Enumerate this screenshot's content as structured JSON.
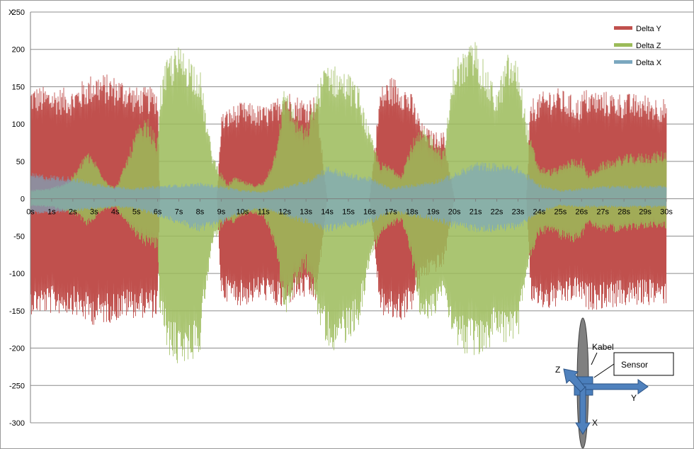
{
  "chart_data": {
    "type": "area",
    "title": "",
    "y_axis_title": "X",
    "xlabel": "",
    "ylabel": "",
    "ylim": [
      -300,
      250
    ],
    "xlim": [
      0,
      30
    ],
    "y_ticks": [
      -300,
      -250,
      -200,
      -150,
      -100,
      -50,
      0,
      50,
      100,
      150,
      200,
      250
    ],
    "y_tick_labels": [
      "-300",
      "-250",
      "-200",
      "-150",
      "-100",
      "-50",
      "0",
      "50",
      "100",
      "150",
      "200",
      "250"
    ],
    "x_tick_labels": [
      "0s",
      "1s",
      "2s",
      "3s",
      "4s",
      "5s",
      "6s",
      "7s",
      "8s",
      "9s",
      "10s",
      "11s",
      "12s",
      "13s",
      "14s",
      "15s",
      "16s",
      "17s",
      "18s",
      "19s",
      "20s",
      "21s",
      "22s",
      "23s",
      "24s",
      "25s",
      "26s",
      "27s",
      "28s",
      "29s",
      "30s"
    ],
    "grid": "horizontal",
    "legend_position": "top-right",
    "colors": {
      "Delta Y": "#c0504d",
      "Delta Z": "#9bbb59",
      "Delta X": "#7ba7bf"
    },
    "series": [
      {
        "name": "Delta Y",
        "envelope": {
          "t": [
            0,
            1,
            2,
            2.5,
            3,
            3.5,
            4,
            4.5,
            5,
            6,
            6.1,
            8.8,
            9,
            9.5,
            10,
            10.5,
            11,
            11.5,
            11.9,
            12.5,
            13,
            13.5,
            14,
            16,
            16.5,
            17,
            17.5,
            18,
            18.5,
            19,
            19.5,
            20,
            22,
            23.4,
            23.6,
            24,
            24.5,
            25,
            25.5,
            25.9,
            26.1,
            27,
            28,
            29,
            30
          ],
          "max": [
            152,
            150,
            148,
            160,
            170,
            168,
            165,
            160,
            150,
            150,
            0,
            0,
            115,
            125,
            130,
            128,
            125,
            130,
            150,
            140,
            135,
            140,
            0,
            0,
            150,
            165,
            160,
            140,
            100,
            90,
            90,
            0,
            0,
            0,
            135,
            140,
            150,
            148,
            140,
            135,
            148,
            145,
            142,
            140,
            135
          ],
          "min": [
            -155,
            -155,
            -155,
            -165,
            -170,
            -168,
            -165,
            -160,
            -160,
            -160,
            0,
            0,
            -135,
            -140,
            -145,
            -140,
            -135,
            -145,
            -150,
            -135,
            -135,
            -140,
            0,
            0,
            -155,
            -165,
            -165,
            -150,
            -110,
            -100,
            -95,
            0,
            0,
            0,
            -140,
            -148,
            -150,
            -145,
            -140,
            -135,
            -150,
            -148,
            -145,
            -143,
            -142
          ]
        }
      },
      {
        "name": "Delta Z",
        "envelope": {
          "t": [
            0,
            1,
            1.8,
            2.3,
            2.6,
            3,
            3.3,
            3.6,
            4,
            4.3,
            4.6,
            5,
            5.5,
            6,
            6.1,
            6.5,
            7,
            7.5,
            8,
            8.3,
            8.6,
            9,
            9.3,
            9.6,
            10,
            10.5,
            11,
            11.5,
            12,
            12.5,
            13,
            13.5,
            14,
            14.5,
            15,
            15.5,
            16,
            16.5,
            17,
            17.5,
            18,
            18.5,
            19,
            19.5,
            20,
            20.5,
            21,
            21.5,
            22,
            22.5,
            23,
            23.5,
            24,
            24.5,
            25,
            25.5,
            26,
            26.3,
            27,
            28,
            29,
            30
          ],
          "max": [
            12,
            15,
            25,
            45,
            65,
            55,
            40,
            25,
            15,
            35,
            60,
            95,
            110,
            80,
            150,
            195,
            205,
            195,
            175,
            110,
            60,
            35,
            20,
            30,
            25,
            20,
            22,
            60,
            155,
            115,
            95,
            150,
            190,
            175,
            170,
            150,
            90,
            50,
            45,
            35,
            80,
            95,
            85,
            65,
            190,
            200,
            215,
            175,
            145,
            195,
            185,
            90,
            45,
            40,
            45,
            55,
            55,
            35,
            50,
            60,
            62,
            65
          ],
          "min": [
            -10,
            -12,
            -20,
            -25,
            -38,
            -30,
            -20,
            -15,
            -12,
            -25,
            -40,
            -55,
            -65,
            -70,
            -155,
            -210,
            -225,
            -220,
            -205,
            -120,
            -60,
            -40,
            -30,
            -35,
            -25,
            -20,
            -25,
            -60,
            -160,
            -125,
            -95,
            -155,
            -200,
            -205,
            -190,
            -170,
            -90,
            -50,
            -40,
            -30,
            -90,
            -180,
            -160,
            -130,
            -195,
            -210,
            -215,
            -210,
            -180,
            -200,
            -190,
            -95,
            -50,
            -45,
            -55,
            -60,
            -55,
            -35,
            -45,
            -45,
            -40,
            -40
          ]
        }
      },
      {
        "name": "Delta X",
        "envelope": {
          "t": [
            0,
            1,
            2,
            3,
            4,
            5,
            6,
            7,
            8,
            9,
            10,
            11,
            12,
            13,
            14,
            15,
            16,
            17,
            18,
            19,
            20,
            21,
            22,
            23,
            24,
            25,
            26,
            27,
            28,
            29,
            30
          ],
          "max": [
            35,
            32,
            30,
            22,
            18,
            15,
            18,
            20,
            22,
            18,
            12,
            10,
            18,
            25,
            45,
            35,
            30,
            15,
            20,
            25,
            35,
            50,
            48,
            45,
            20,
            12,
            15,
            18,
            18,
            18,
            18
          ],
          "min": [
            -22,
            -20,
            -18,
            -15,
            -12,
            -15,
            -25,
            -35,
            -45,
            -35,
            -20,
            -15,
            -25,
            -35,
            -45,
            -40,
            -35,
            -20,
            -25,
            -30,
            -40,
            -45,
            -45,
            -42,
            -20,
            -10,
            -12,
            -12,
            -12,
            -12,
            -12
          ]
        }
      }
    ]
  },
  "diagram": {
    "cable_label": "Kabel",
    "sensor_label": "Sensor",
    "axis_z_label": "Z",
    "axis_y_label": "Y",
    "axis_x_label": "X"
  }
}
